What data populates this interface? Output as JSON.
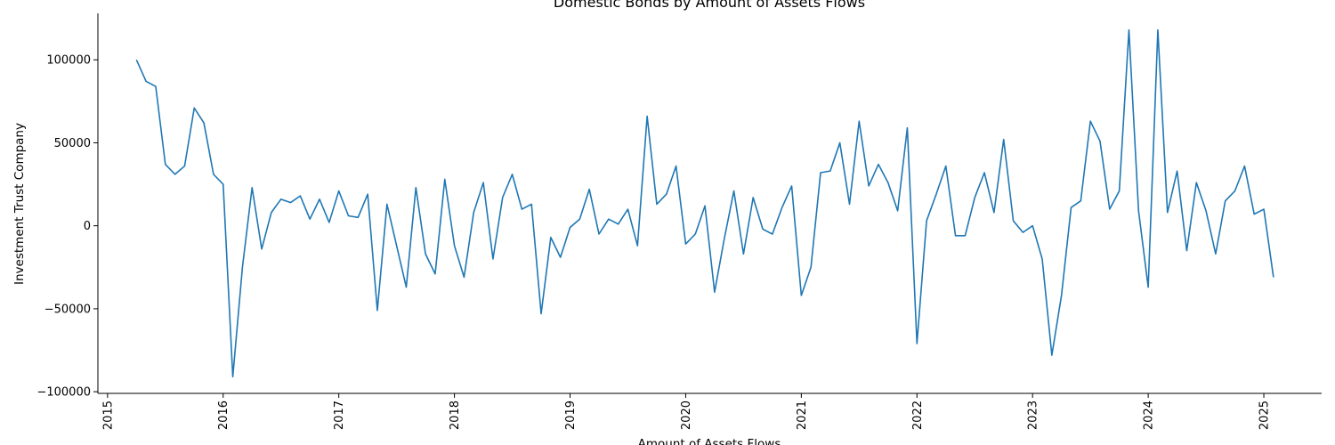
{
  "chart_data": {
    "type": "line",
    "title": "Domestic Bonds by Amount of Assets Flows",
    "xlabel": "Amount of Assets Flows",
    "ylabel": "Investment Trust Company",
    "x_tick_labels": [
      "2015",
      "2016",
      "2017",
      "2018",
      "2019",
      "2020",
      "2021",
      "2022",
      "2023",
      "2024",
      "2025"
    ],
    "y_tick_labels": [
      "−100000",
      "−50000",
      "0",
      "50000",
      "100000"
    ],
    "y_ticks": [
      -100000,
      -50000,
      0,
      50000,
      100000
    ],
    "xlim": [
      "2014-12",
      "2025-07"
    ],
    "ylim": [
      -101000,
      128000
    ],
    "grid": false,
    "line_color": "#1f77b4",
    "series": [
      {
        "x": [
          "2015-04",
          "2015-05",
          "2015-06",
          "2015-07",
          "2015-08",
          "2015-09",
          "2015-10",
          "2015-11",
          "2015-12",
          "2016-01",
          "2016-02",
          "2016-03",
          "2016-04",
          "2016-05",
          "2016-06",
          "2016-07",
          "2016-08",
          "2016-09",
          "2016-10",
          "2016-11",
          "2016-12",
          "2017-01",
          "2017-02",
          "2017-03",
          "2017-04",
          "2017-05",
          "2017-06",
          "2017-07",
          "2017-08",
          "2017-09",
          "2017-10",
          "2017-11",
          "2017-12",
          "2018-01",
          "2018-02",
          "2018-03",
          "2018-04",
          "2018-05",
          "2018-06",
          "2018-07",
          "2018-08",
          "2018-09",
          "2018-10",
          "2018-11",
          "2018-12",
          "2019-01",
          "2019-02",
          "2019-03",
          "2019-04",
          "2019-05",
          "2019-06",
          "2019-07",
          "2019-08",
          "2019-09",
          "2019-10",
          "2019-11",
          "2019-12",
          "2020-01",
          "2020-02",
          "2020-03",
          "2020-04",
          "2020-05",
          "2020-06",
          "2020-07",
          "2020-08",
          "2020-09",
          "2020-10",
          "2020-11",
          "2020-12",
          "2021-01",
          "2021-02",
          "2021-03",
          "2021-04",
          "2021-05",
          "2021-06",
          "2021-07",
          "2021-08",
          "2021-09",
          "2021-10",
          "2021-11",
          "2021-12",
          "2022-01",
          "2022-02",
          "2022-03",
          "2022-04",
          "2022-05",
          "2022-06",
          "2022-07",
          "2022-08",
          "2022-09",
          "2022-10",
          "2022-11",
          "2022-12",
          "2023-01",
          "2023-02",
          "2023-03",
          "2023-04",
          "2023-05",
          "2023-06",
          "2023-07",
          "2023-08",
          "2023-09",
          "2023-10",
          "2023-11",
          "2023-12",
          "2024-01",
          "2024-02",
          "2024-03",
          "2024-04",
          "2024-05",
          "2024-06",
          "2024-07",
          "2024-08",
          "2024-09",
          "2024-10",
          "2024-11",
          "2024-12",
          "2025-01",
          "2025-02"
        ],
        "values": [
          100000,
          87000,
          84000,
          37000,
          31000,
          36000,
          71000,
          62000,
          31000,
          25000,
          -91000,
          -25000,
          23000,
          -14000,
          8000,
          16000,
          14000,
          18000,
          4000,
          16000,
          2000,
          21000,
          6000,
          5000,
          19000,
          -51000,
          13000,
          -12000,
          -37000,
          23000,
          -17000,
          -29000,
          28000,
          -12000,
          -31000,
          8000,
          26000,
          -20000,
          17000,
          31000,
          10000,
          13000,
          -53000,
          -7000,
          -19000,
          -1000,
          4000,
          22000,
          -5000,
          4000,
          1000,
          10000,
          -12000,
          66000,
          13000,
          19000,
          36000,
          -11000,
          -5000,
          12000,
          -40000,
          -8000,
          21000,
          -17000,
          17000,
          -2000,
          -5000,
          11000,
          24000,
          -42000,
          -25000,
          32000,
          33000,
          50000,
          13000,
          63000,
          24000,
          37000,
          26000,
          9000,
          59000,
          -71000,
          3000,
          19000,
          36000,
          -6000,
          -6000,
          17000,
          32000,
          8000,
          52000,
          3000,
          -4000,
          0,
          -20000,
          -78000,
          -42000,
          11000,
          15000,
          63000,
          51000,
          10000,
          21000,
          118000,
          9000,
          -37000,
          118000,
          8000,
          33000,
          -15000,
          26000,
          9000,
          -17000,
          15000,
          21000,
          36000,
          7000,
          10000,
          -31000
        ]
      }
    ]
  }
}
